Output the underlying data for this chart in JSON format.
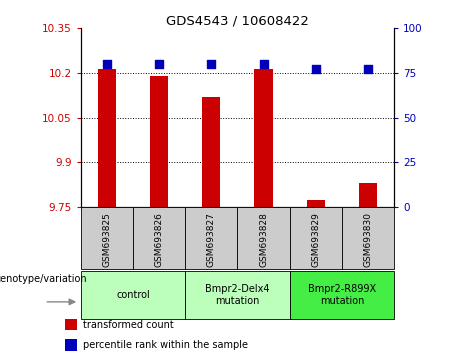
{
  "title": "GDS4543 / 10608422",
  "samples": [
    "GSM693825",
    "GSM693826",
    "GSM693827",
    "GSM693828",
    "GSM693829",
    "GSM693830"
  ],
  "bar_values": [
    10.215,
    10.19,
    10.12,
    10.215,
    9.775,
    9.83
  ],
  "percentile_values": [
    80,
    80,
    80,
    80,
    77,
    77
  ],
  "ylim_left": [
    9.75,
    10.35
  ],
  "ylim_right": [
    0,
    100
  ],
  "yticks_left": [
    9.75,
    9.9,
    10.05,
    10.2,
    10.35
  ],
  "yticks_right": [
    0,
    25,
    50,
    75,
    100
  ],
  "ytick_labels_left": [
    "9.75",
    "9.9",
    "10.05",
    "10.2",
    "10.35"
  ],
  "ytick_labels_right": [
    "0",
    "25",
    "50",
    "75",
    "100"
  ],
  "bar_color": "#cc0000",
  "dot_color": "#0000bb",
  "grid_color": "#000000",
  "bg_color": "#ffffff",
  "plot_bg": "#ffffff",
  "groups": [
    {
      "label": "control",
      "start": 0,
      "end": 2,
      "color": "#bbffbb"
    },
    {
      "label": "Bmpr2-Delx4\nmutation",
      "start": 2,
      "end": 4,
      "color": "#bbffbb"
    },
    {
      "label": "Bmpr2-R899X\nmutation",
      "start": 4,
      "end": 6,
      "color": "#44ee44"
    }
  ],
  "genotype_label": "genotype/variation",
  "legend_items": [
    {
      "color": "#cc0000",
      "label": "transformed count"
    },
    {
      "color": "#0000bb",
      "label": "percentile rank within the sample"
    }
  ],
  "tick_color_left": "#cc0000",
  "tick_color_right": "#0000bb",
  "bar_width": 0.35,
  "dot_size": 35,
  "sample_box_color": "#cccccc",
  "figsize": [
    4.61,
    3.54
  ],
  "dpi": 100
}
